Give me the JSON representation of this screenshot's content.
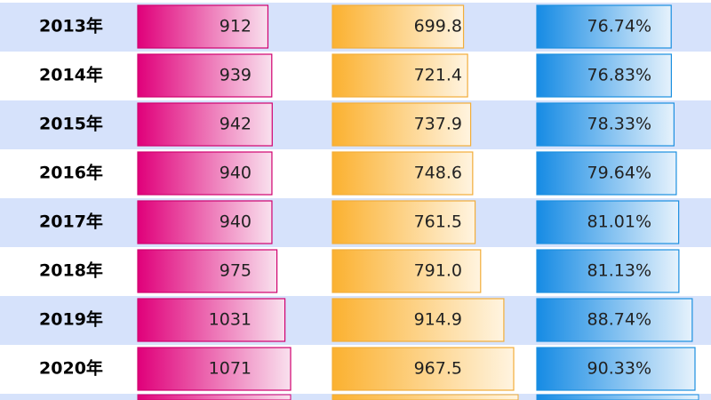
{
  "table": {
    "rows": [
      "2013年",
      "2014年",
      "2015年",
      "2016年",
      "2017年",
      "2018年",
      "2019年",
      "2020年"
    ],
    "columns": [
      {
        "values": [
          912,
          939,
          942,
          940,
          940,
          975,
          1031,
          1071
        ]
      },
      {
        "values": [
          699.8,
          721.4,
          737.9,
          748.6,
          761.5,
          791.0,
          914.9,
          967.5
        ],
        "value_labels": [
          "699.8",
          "721.4",
          "737.9",
          "748.6",
          "761.5",
          "791.0",
          "914.9",
          "967.5"
        ]
      },
      {
        "values": [
          76.74,
          76.83,
          78.33,
          79.64,
          81.01,
          81.13,
          88.74,
          90.33
        ],
        "value_labels": [
          "76.74%",
          "76.83%",
          "78.33%",
          "79.64%",
          "81.01%",
          "81.13%",
          "88.74%",
          "90.33%"
        ]
      }
    ]
  }
}
